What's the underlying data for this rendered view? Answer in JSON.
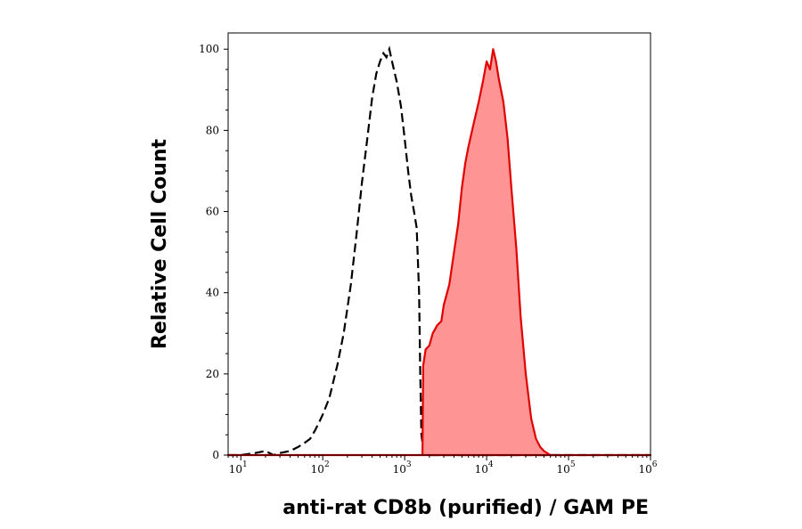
{
  "chart_data": {
    "type": "area",
    "title": "",
    "xlabel": "anti-rat CD8b (purified) / GAM PE",
    "ylabel": "Relative Cell Count",
    "x_scale": "log",
    "xlim": [
      7,
      1000000
    ],
    "ylim": [
      0,
      104
    ],
    "grid": false,
    "x_tick_labels": [
      {
        "base": "10",
        "exp": "1",
        "value": 10
      },
      {
        "base": "10",
        "exp": "2",
        "value": 100
      },
      {
        "base": "10",
        "exp": "3",
        "value": 1000
      },
      {
        "base": "10",
        "exp": "4",
        "value": 10000
      },
      {
        "base": "10",
        "exp": "5",
        "value": 100000
      },
      {
        "base": "10",
        "exp": "6",
        "value": 1000000
      }
    ],
    "y_ticks": [
      0,
      20,
      40,
      60,
      80,
      100
    ],
    "series": [
      {
        "style": "dashed-line",
        "color": "#000000",
        "points": [
          [
            7,
            0
          ],
          [
            10,
            0
          ],
          [
            15,
            0.5
          ],
          [
            20,
            1
          ],
          [
            25,
            0
          ],
          [
            30,
            0.5
          ],
          [
            40,
            1
          ],
          [
            50,
            2
          ],
          [
            60,
            3
          ],
          [
            70,
            4
          ],
          [
            80,
            6
          ],
          [
            90,
            8
          ],
          [
            100,
            10
          ],
          [
            120,
            14
          ],
          [
            150,
            22
          ],
          [
            180,
            30
          ],
          [
            220,
            42
          ],
          [
            260,
            55
          ],
          [
            300,
            67
          ],
          [
            350,
            78
          ],
          [
            400,
            88
          ],
          [
            450,
            94
          ],
          [
            500,
            97
          ],
          [
            550,
            99
          ],
          [
            600,
            98
          ],
          [
            650,
            100
          ],
          [
            700,
            97
          ],
          [
            800,
            92
          ],
          [
            900,
            86
          ],
          [
            1000,
            78
          ],
          [
            1100,
            70
          ],
          [
            1200,
            64
          ],
          [
            1300,
            60
          ],
          [
            1400,
            56
          ],
          [
            1500,
            40
          ],
          [
            1550,
            20
          ],
          [
            1600,
            5
          ],
          [
            1700,
            1
          ],
          [
            2000,
            0
          ],
          [
            1000000,
            0
          ]
        ]
      },
      {
        "style": "filled-area",
        "color": "#e00000",
        "fill": "#ff9494",
        "points": [
          [
            7,
            0
          ],
          [
            1650,
            0
          ],
          [
            1680,
            22
          ],
          [
            1800,
            26
          ],
          [
            2000,
            27
          ],
          [
            2200,
            30
          ],
          [
            2500,
            32
          ],
          [
            2800,
            33
          ],
          [
            3000,
            37
          ],
          [
            3500,
            42
          ],
          [
            4000,
            50
          ],
          [
            4500,
            57
          ],
          [
            5000,
            66
          ],
          [
            5500,
            72
          ],
          [
            6000,
            76
          ],
          [
            7000,
            82
          ],
          [
            8000,
            87
          ],
          [
            9000,
            92
          ],
          [
            10000,
            97
          ],
          [
            11000,
            95
          ],
          [
            12000,
            100
          ],
          [
            13000,
            97
          ],
          [
            14000,
            93
          ],
          [
            16000,
            87
          ],
          [
            18000,
            78
          ],
          [
            20000,
            66
          ],
          [
            23000,
            51
          ],
          [
            26000,
            34
          ],
          [
            30000,
            20
          ],
          [
            35000,
            9
          ],
          [
            40000,
            4
          ],
          [
            45000,
            2
          ],
          [
            50000,
            1
          ],
          [
            60000,
            0
          ],
          [
            1000000,
            0
          ]
        ]
      }
    ]
  }
}
